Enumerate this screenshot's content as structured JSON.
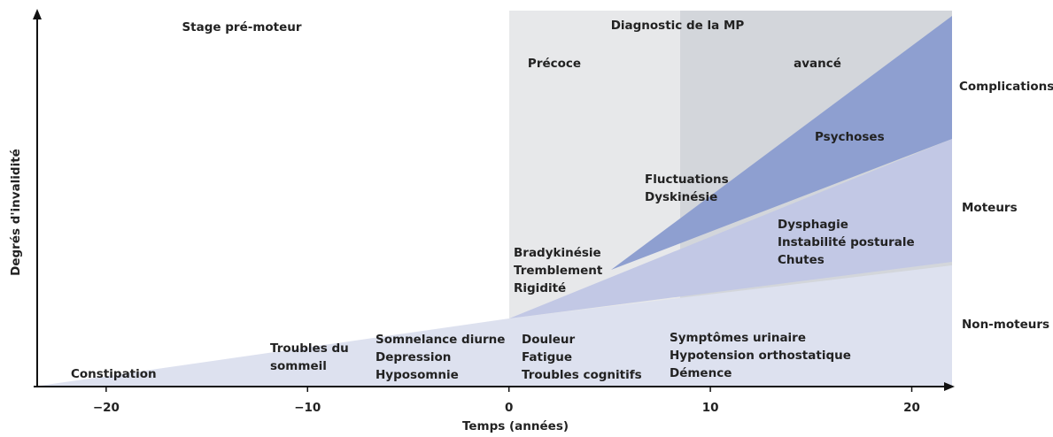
{
  "axis": {
    "y_label": "Degrés d'invalidité",
    "x_label": "Temps (années)",
    "xlim": [
      -23.6,
      22
    ],
    "xticks": [
      {
        "value": -20,
        "label": "−20"
      },
      {
        "value": -10,
        "label": "−10"
      },
      0,
      10,
      20
    ]
  },
  "phases": {
    "premotor": "Stage pré-moteur",
    "diagnosis": "Diagnostic de la MP",
    "early": "Précoce",
    "advanced": "avancé"
  },
  "categories": {
    "complications": "Complications",
    "motor": "Moteurs",
    "nonmotor": "Non-moteurs"
  },
  "symptoms": [
    [
      "Constipation"
    ],
    [
      "Troubles du",
      "sommeil"
    ],
    [
      "Somnelance diurne",
      "Depression",
      "Hyposomnie"
    ],
    [
      "Douleur",
      "Fatigue",
      "Troubles cognitifs"
    ],
    [
      "Symptômes urinaire",
      "Hypotension orthostatique",
      "Démence"
    ],
    [
      "Bradykinésie",
      "Tremblement",
      "Rigidité"
    ],
    [
      "Dysphagie",
      "Instabilité posturale",
      "Chutes"
    ],
    [
      "Fluctuations",
      "Dyskinésie"
    ],
    [
      "Psychoses"
    ]
  ]
}
